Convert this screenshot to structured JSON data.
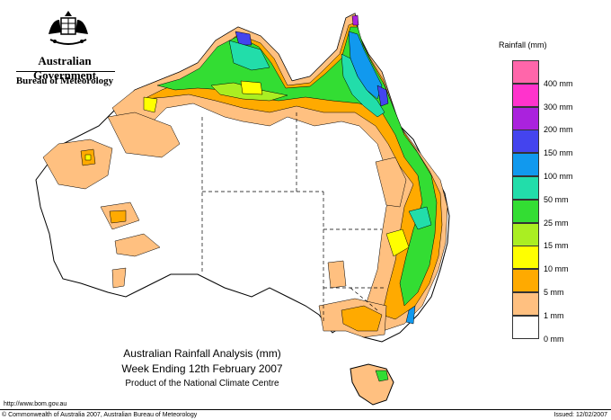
{
  "header": {
    "government": "Australian Government",
    "bureau": "Bureau of Meteorology"
  },
  "legend": {
    "title": "Rainfall (mm)",
    "items": [
      {
        "label": "",
        "color": "#ff66aa"
      },
      {
        "label": "400 mm",
        "color": "#ff33cc"
      },
      {
        "label": "300 mm",
        "color": "#aa22dd"
      },
      {
        "label": "200 mm",
        "color": "#4444ee"
      },
      {
        "label": "150 mm",
        "color": "#1199ee"
      },
      {
        "label": "100 mm",
        "color": "#22ddaa"
      },
      {
        "label": "50 mm",
        "color": "#33dd33"
      },
      {
        "label": "25 mm",
        "color": "#aaee22"
      },
      {
        "label": "15 mm",
        "color": "#ffff00"
      },
      {
        "label": "10 mm",
        "color": "#ffaa00"
      },
      {
        "label": "5 mm",
        "color": "#ffc080"
      },
      {
        "label": "1 mm",
        "color": "#ffffff"
      },
      {
        "label": "0 mm",
        "color": ""
      }
    ]
  },
  "caption": {
    "line1": "Australian Rainfall Analysis (mm)",
    "line2": "Week Ending 12th February 2007",
    "line3": "Product of the National Climate Centre"
  },
  "footer": {
    "url": "http://www.bom.gov.au",
    "copyright": "© Commonwealth of Australia 2007, Australian Bureau of Meteorology",
    "issued": "Issued: 12/02/2007"
  }
}
